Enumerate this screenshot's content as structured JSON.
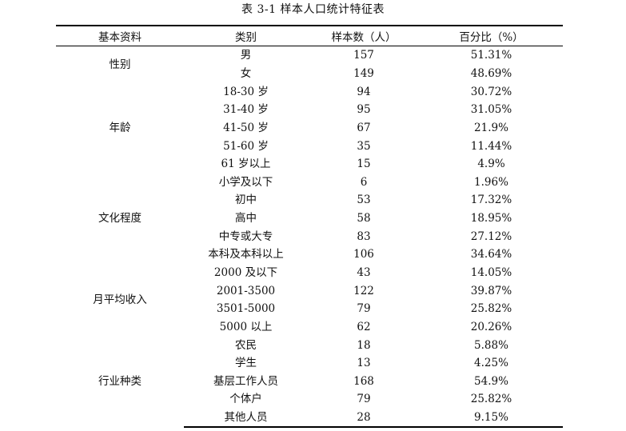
{
  "caption": "表 3-1  样本人口统计特征表",
  "headers": [
    "基本资料",
    "类别",
    "样本数（人）",
    "百分比（%）"
  ],
  "groups": [
    {
      "name": "性别",
      "rows": [
        {
          "category": "男",
          "count": "157",
          "percent": "51.31%"
        },
        {
          "category": "女",
          "count": "149",
          "percent": "48.69%"
        }
      ]
    },
    {
      "name": "年龄",
      "rows": [
        {
          "category": "18-30 岁",
          "count": "94",
          "percent": "30.72%"
        },
        {
          "category": "31-40 岁",
          "count": "95",
          "percent": "31.05%"
        },
        {
          "category": "41-50 岁",
          "count": "67",
          "percent": "21.9%"
        },
        {
          "category": "51-60 岁",
          "count": "35",
          "percent": "11.44%"
        },
        {
          "category": "61 岁以上",
          "count": "15",
          "percent": "4.9%"
        }
      ]
    },
    {
      "name": "文化程度",
      "rows": [
        {
          "category": "小学及以下",
          "count": "6",
          "percent": "1.96%"
        },
        {
          "category": "初中",
          "count": "53",
          "percent": "17.32%"
        },
        {
          "category": "高中",
          "count": "58",
          "percent": "18.95%"
        },
        {
          "category": "中专或大专",
          "count": "83",
          "percent": "27.12%"
        },
        {
          "category": "本科及本科以上",
          "count": "106",
          "percent": "34.64%"
        }
      ]
    },
    {
      "name": "月平均收入",
      "rows": [
        {
          "category": "2000 及以下",
          "count": "43",
          "percent": "14.05%"
        },
        {
          "category": "2001-3500",
          "count": "122",
          "percent": "39.87%"
        },
        {
          "category": "3501-5000",
          "count": "79",
          "percent": "25.82%"
        },
        {
          "category": "5000 以上",
          "count": "62",
          "percent": "20.26%"
        }
      ]
    },
    {
      "name": "行业种类",
      "rows": [
        {
          "category": "农民",
          "count": "18",
          "percent": "5.88%"
        },
        {
          "category": "学生",
          "count": "13",
          "percent": "4.25%"
        },
        {
          "category": "基层工作人员",
          "count": "168",
          "percent": "54.9%"
        },
        {
          "category": "个体户",
          "count": "79",
          "percent": "25.82%"
        },
        {
          "category": "其他人员",
          "count": "28",
          "percent": "9.15%"
        }
      ]
    }
  ]
}
